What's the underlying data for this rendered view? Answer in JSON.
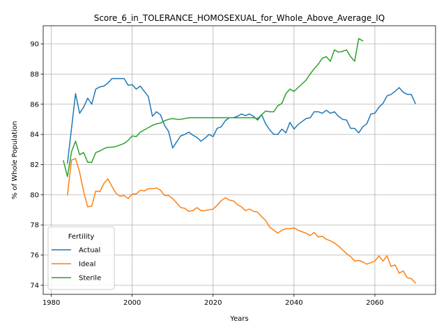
{
  "chart_data": {
    "type": "line",
    "title": "Score_6_in_TOLERANCE_HOMOSEXUAL_for_Whole_Above_Average_IQ",
    "xlabel": "Years",
    "ylabel": "% of Whole Population",
    "xlim": [
      1978,
      2075
    ],
    "ylim": [
      73.4,
      91.2
    ],
    "xticks": [
      1980,
      2000,
      2020,
      2040,
      2060
    ],
    "yticks": [
      74,
      76,
      78,
      80,
      82,
      84,
      86,
      88,
      90
    ],
    "grid": true,
    "legend": {
      "title": "Fertility",
      "position": "lower-left"
    },
    "series": [
      {
        "name": "Actual",
        "color": "#1f77b4",
        "x": [
          1984,
          1985,
          1986,
          1987,
          1988,
          1989,
          1990,
          1991,
          1992,
          1993,
          1994,
          1995,
          1996,
          1997,
          1998,
          1999,
          2000,
          2001,
          2002,
          2003,
          2004,
          2005,
          2006,
          2007,
          2008,
          2009,
          2010,
          2011,
          2012,
          2013,
          2014,
          2015,
          2016,
          2017,
          2018,
          2019,
          2020,
          2021,
          2022,
          2023,
          2024,
          2025,
          2026,
          2027,
          2028,
          2029,
          2030,
          2031,
          2032,
          2033,
          2034,
          2035,
          2036,
          2037,
          2038,
          2039,
          2040,
          2041,
          2042,
          2043,
          2044,
          2045,
          2046,
          2047,
          2048,
          2049,
          2050,
          2051,
          2052,
          2053,
          2054,
          2055,
          2056,
          2057,
          2058,
          2059,
          2060,
          2061,
          2062,
          2063,
          2064,
          2065,
          2066,
          2067,
          2068,
          2069,
          2070
        ],
        "y": [
          82.1,
          84.4,
          86.7,
          85.4,
          85.8,
          86.4,
          86.0,
          87.0,
          87.15,
          87.2,
          87.4,
          87.7,
          87.7,
          87.7,
          87.7,
          87.25,
          87.3,
          87.0,
          87.2,
          86.85,
          86.5,
          85.2,
          85.5,
          85.3,
          84.6,
          84.2,
          83.1,
          83.5,
          83.9,
          84.0,
          84.15,
          83.95,
          83.8,
          83.55,
          83.75,
          84.0,
          83.85,
          84.4,
          84.5,
          84.9,
          85.1,
          85.1,
          85.2,
          85.35,
          85.25,
          85.35,
          85.2,
          84.95,
          85.3,
          84.7,
          84.3,
          84.0,
          84.0,
          84.35,
          84.1,
          84.8,
          84.35,
          84.65,
          84.85,
          85.05,
          85.1,
          85.5,
          85.5,
          85.4,
          85.6,
          85.4,
          85.5,
          85.2,
          85.0,
          84.95,
          84.4,
          84.4,
          84.1,
          84.5,
          84.7,
          85.35,
          85.4,
          85.8,
          86.05,
          86.55,
          86.65,
          86.85,
          87.1,
          86.8,
          86.65,
          86.65,
          86.05
        ]
      },
      {
        "name": "Ideal",
        "color": "#ff7f0e",
        "x": [
          1984,
          1985,
          1986,
          1987,
          1988,
          1989,
          1990,
          1991,
          1992,
          1993,
          1994,
          1995,
          1996,
          1997,
          1998,
          1999,
          2000,
          2001,
          2002,
          2003,
          2004,
          2005,
          2006,
          2007,
          2008,
          2009,
          2010,
          2011,
          2012,
          2013,
          2014,
          2015,
          2016,
          2017,
          2018,
          2019,
          2020,
          2021,
          2022,
          2023,
          2024,
          2025,
          2026,
          2027,
          2028,
          2029,
          2030,
          2031,
          2032,
          2033,
          2034,
          2035,
          2036,
          2037,
          2038,
          2039,
          2040,
          2041,
          2042,
          2043,
          2044,
          2045,
          2046,
          2047,
          2048,
          2049,
          2050,
          2051,
          2052,
          2053,
          2054,
          2055,
          2056,
          2057,
          2058,
          2059,
          2060,
          2061,
          2062,
          2063,
          2064,
          2065,
          2066,
          2067,
          2068,
          2069,
          2070
        ],
        "y": [
          80.0,
          82.3,
          82.4,
          81.5,
          80.2,
          79.2,
          79.25,
          80.25,
          80.2,
          80.75,
          81.05,
          80.55,
          80.1,
          79.9,
          79.95,
          79.75,
          80.05,
          80.05,
          80.3,
          80.25,
          80.4,
          80.4,
          80.45,
          80.3,
          79.95,
          79.95,
          79.75,
          79.45,
          79.15,
          79.1,
          78.9,
          78.95,
          79.15,
          78.95,
          78.95,
          79.0,
          79.05,
          79.3,
          79.6,
          79.8,
          79.65,
          79.6,
          79.35,
          79.2,
          78.95,
          79.05,
          78.9,
          78.85,
          78.55,
          78.3,
          77.85,
          77.65,
          77.45,
          77.65,
          77.75,
          77.75,
          77.8,
          77.65,
          77.55,
          77.45,
          77.3,
          77.5,
          77.2,
          77.25,
          77.05,
          76.95,
          76.8,
          76.6,
          76.35,
          76.1,
          75.9,
          75.6,
          75.65,
          75.55,
          75.4,
          75.5,
          75.6,
          75.95,
          75.6,
          75.95,
          75.25,
          75.35,
          74.8,
          74.95,
          74.5,
          74.45,
          74.15
        ]
      },
      {
        "name": "Sterile",
        "color": "#2ca02c",
        "x": [
          1983,
          1984,
          1985,
          1986,
          1987,
          1988,
          1989,
          1990,
          1991,
          1992,
          1993,
          1994,
          1995,
          1996,
          1997,
          1998,
          1999,
          2000,
          2001,
          2002,
          2003,
          2004,
          2005,
          2006,
          2007,
          2008,
          2009,
          2010,
          2011,
          2012,
          2013,
          2014,
          2015,
          2016,
          2017,
          2018,
          2019,
          2020,
          2021,
          2022,
          2023,
          2024,
          2025,
          2026,
          2027,
          2028,
          2029,
          2030,
          2031,
          2032,
          2033,
          2034,
          2035,
          2036,
          2037,
          2038,
          2039,
          2040,
          2041,
          2042,
          2043,
          2044,
          2045,
          2046,
          2047,
          2048,
          2049,
          2050,
          2051,
          2052,
          2053,
          2054,
          2055,
          2056,
          2057
        ],
        "y": [
          82.25,
          81.2,
          82.85,
          83.55,
          82.65,
          82.8,
          82.15,
          82.15,
          82.8,
          82.9,
          83.05,
          83.15,
          83.15,
          83.2,
          83.3,
          83.4,
          83.6,
          83.9,
          83.85,
          84.15,
          84.3,
          84.45,
          84.6,
          84.7,
          84.75,
          84.9,
          85.0,
          85.05,
          85.0,
          85.0,
          85.05,
          85.1,
          85.1,
          85.1,
          85.1,
          85.1,
          85.1,
          85.1,
          85.1,
          85.1,
          85.1,
          85.1,
          85.1,
          85.1,
          85.1,
          85.1,
          85.1,
          85.1,
          85.05,
          85.3,
          85.55,
          85.5,
          85.5,
          85.9,
          86.05,
          86.7,
          87.0,
          86.85,
          87.1,
          87.35,
          87.6,
          88.0,
          88.35,
          88.65,
          89.05,
          89.15,
          88.85,
          89.6,
          89.45,
          89.5,
          89.6,
          89.15,
          88.85,
          90.35,
          90.2
        ]
      }
    ]
  }
}
